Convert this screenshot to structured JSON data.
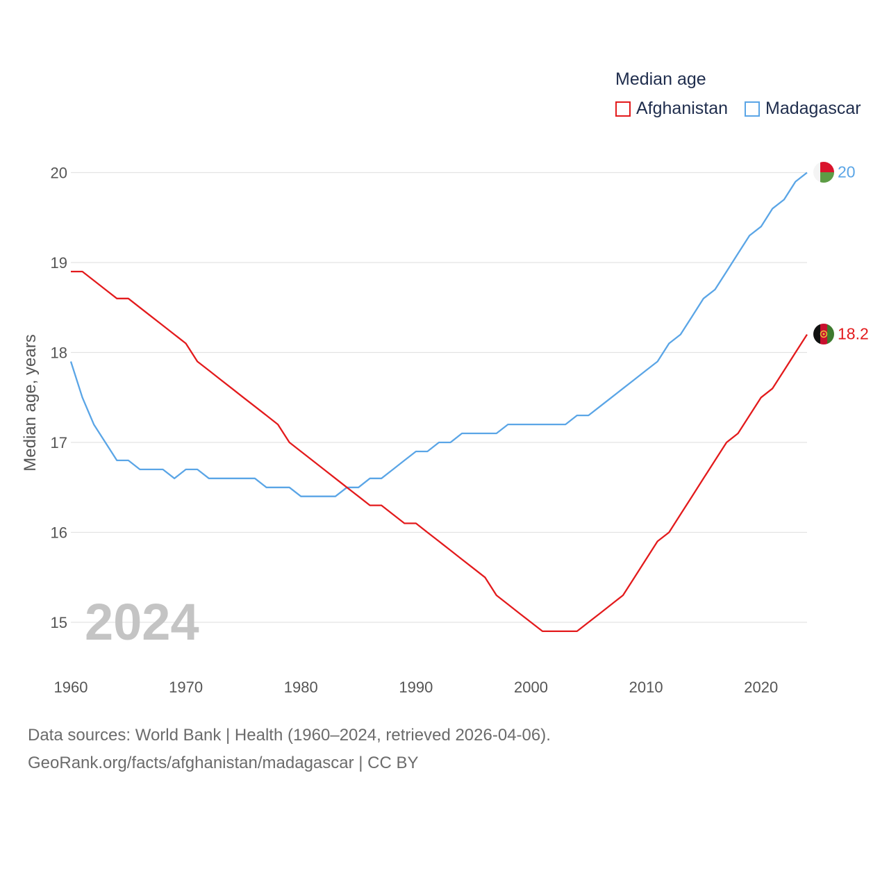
{
  "legend": {
    "title": "Median age",
    "items": [
      {
        "name": "Afghanistan",
        "color": "#e31a1c"
      },
      {
        "name": "Madagascar",
        "color": "#5aa5e6"
      }
    ]
  },
  "year_label": "2024",
  "source_line1": "Data sources: World Bank | Health (1960–2024, retrieved 2026-04-06).",
  "source_line2": "GeoRank.org/facts/afghanistan/madagascar | CC BY",
  "chart_data": {
    "type": "line",
    "title": "Median age",
    "xlabel": "",
    "ylabel": "Median age, years",
    "xlim": [
      1960,
      2024
    ],
    "ylim": [
      14.5,
      20.2
    ],
    "x_ticks": [
      1960,
      1970,
      1980,
      1990,
      2000,
      2010,
      2020
    ],
    "y_ticks": [
      15,
      16,
      17,
      18,
      19,
      20
    ],
    "grid": true,
    "x": [
      1960,
      1961,
      1962,
      1963,
      1964,
      1965,
      1966,
      1967,
      1968,
      1969,
      1970,
      1971,
      1972,
      1973,
      1974,
      1975,
      1976,
      1977,
      1978,
      1979,
      1980,
      1981,
      1982,
      1983,
      1984,
      1985,
      1986,
      1987,
      1988,
      1989,
      1990,
      1991,
      1992,
      1993,
      1994,
      1995,
      1996,
      1997,
      1998,
      1999,
      2000,
      2001,
      2002,
      2003,
      2004,
      2005,
      2006,
      2007,
      2008,
      2009,
      2010,
      2011,
      2012,
      2013,
      2014,
      2015,
      2016,
      2017,
      2018,
      2019,
      2020,
      2021,
      2022,
      2023,
      2024
    ],
    "series": [
      {
        "name": "Afghanistan",
        "color": "#e31a1c",
        "end_label": "18.2",
        "flag": "afghanistan-flag-icon",
        "values": [
          18.9,
          18.9,
          18.8,
          18.7,
          18.6,
          18.6,
          18.5,
          18.4,
          18.3,
          18.2,
          18.1,
          17.9,
          17.8,
          17.7,
          17.6,
          17.5,
          17.4,
          17.3,
          17.2,
          17.0,
          16.9,
          16.8,
          16.7,
          16.6,
          16.5,
          16.4,
          16.3,
          16.3,
          16.2,
          16.1,
          16.1,
          16.0,
          15.9,
          15.8,
          15.7,
          15.6,
          15.5,
          15.3,
          15.2,
          15.1,
          15.0,
          14.9,
          14.9,
          14.9,
          14.9,
          15.0,
          15.1,
          15.2,
          15.3,
          15.5,
          15.7,
          15.9,
          16.0,
          16.2,
          16.4,
          16.6,
          16.8,
          17.0,
          17.1,
          17.3,
          17.5,
          17.6,
          17.8,
          18.0,
          18.2
        ]
      },
      {
        "name": "Madagascar",
        "color": "#5aa5e6",
        "end_label": "20",
        "flag": "madagascar-flag-icon",
        "values": [
          17.9,
          17.5,
          17.2,
          17.0,
          16.8,
          16.8,
          16.7,
          16.7,
          16.7,
          16.6,
          16.7,
          16.7,
          16.6,
          16.6,
          16.6,
          16.6,
          16.6,
          16.5,
          16.5,
          16.5,
          16.4,
          16.4,
          16.4,
          16.4,
          16.5,
          16.5,
          16.6,
          16.6,
          16.7,
          16.8,
          16.9,
          16.9,
          17.0,
          17.0,
          17.1,
          17.1,
          17.1,
          17.1,
          17.2,
          17.2,
          17.2,
          17.2,
          17.2,
          17.2,
          17.3,
          17.3,
          17.4,
          17.5,
          17.6,
          17.7,
          17.8,
          17.9,
          18.1,
          18.2,
          18.4,
          18.6,
          18.7,
          18.9,
          19.1,
          19.3,
          19.4,
          19.6,
          19.7,
          19.9,
          20.0
        ]
      }
    ]
  }
}
